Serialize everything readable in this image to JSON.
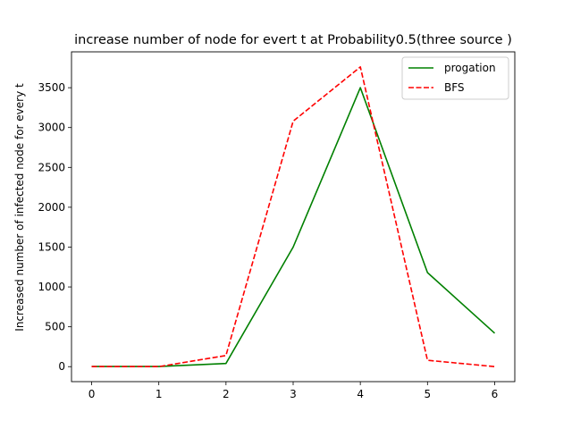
{
  "chart_data": {
    "type": "line",
    "title": "increase number of node for evert t  at Probability0.5(three source )",
    "xlabel": "",
    "ylabel": "Increased number of infected node for every t",
    "x": [
      0,
      1,
      2,
      3,
      4,
      5,
      6
    ],
    "xlim": [
      -0.3,
      6.3
    ],
    "ylim": [
      -188,
      3950
    ],
    "xticks": [
      0,
      1,
      2,
      3,
      4,
      5,
      6
    ],
    "yticks": [
      0,
      500,
      1000,
      1500,
      2000,
      2500,
      3000,
      3500
    ],
    "grid": false,
    "legend_position": "top-right",
    "series": [
      {
        "name": "progation",
        "color": "#008000",
        "style": "solid",
        "values": [
          2,
          2,
          40,
          1500,
          3500,
          1180,
          420
        ]
      },
      {
        "name": "BFS",
        "color": "#ff0000",
        "style": "dashed",
        "values": [
          0,
          0,
          140,
          3080,
          3760,
          80,
          0
        ]
      }
    ]
  }
}
